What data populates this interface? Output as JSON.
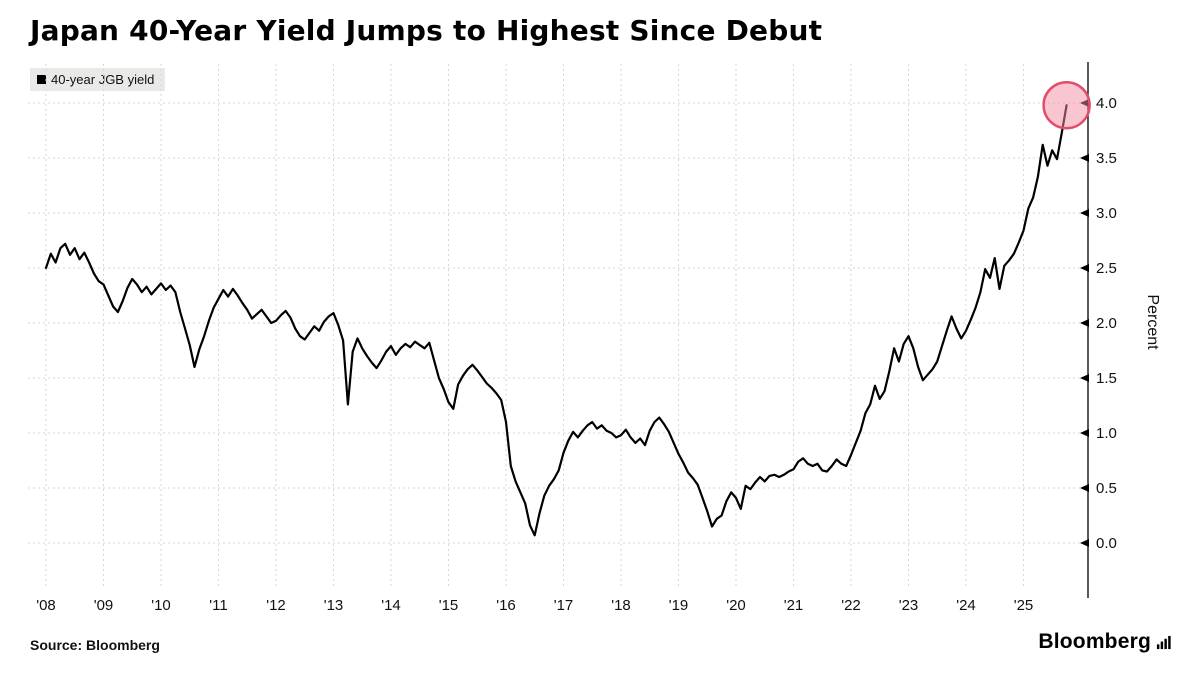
{
  "header": {
    "title": "Japan 40-Year Yield Jumps to Highest Since Debut"
  },
  "legend": {
    "label": "40-year JGB yield",
    "swatch_color": "#000000",
    "background": "#e9e9e7"
  },
  "footer": {
    "source": "Source: Bloomberg",
    "brand": "Bloomberg"
  },
  "chart_data": {
    "type": "line",
    "title": "Japan 40-Year Yield Jumps to Highest Since Debut",
    "xlabel": "",
    "ylabel": "Percent",
    "ylim": [
      0.0,
      4.0
    ],
    "grid": "dotted",
    "legend_position": "top-left",
    "yticks": [
      0,
      0.5,
      1,
      1.5,
      2,
      2.5,
      3,
      3.5,
      4
    ],
    "ytick_labels": [
      "0.0",
      "0.5",
      "1.0",
      "1.5",
      "2.0",
      "2.5",
      "3.0",
      "3.5",
      "4.0"
    ],
    "xticks": [
      2008,
      2009,
      2010,
      2011,
      2012,
      2013,
      2014,
      2015,
      2016,
      2017,
      2018,
      2019,
      2020,
      2021,
      2022,
      2023,
      2024,
      2025
    ],
    "xtick_labels": [
      "'08",
      "'09",
      "'10",
      "'11",
      "'12",
      "'13",
      "'14",
      "'15",
      "'16",
      "'17",
      "'18",
      "'19",
      "'20",
      "'21",
      "'22",
      "'23",
      "'24",
      "'25"
    ],
    "colors": {
      "line": "#000000",
      "grid": "#d6d6d6",
      "axis": "#000000",
      "tick_text": "#111111"
    },
    "highlight": {
      "x": 2025.75,
      "y": 3.98,
      "radius": 23,
      "fill": "#f48ca3",
      "stroke": "#df4f6c"
    },
    "series": [
      {
        "name": "40-year JGB yield",
        "x_start": 2008.0,
        "x_step": 0.083333,
        "values": [
          2.5,
          2.63,
          2.55,
          2.68,
          2.72,
          2.62,
          2.68,
          2.58,
          2.64,
          2.55,
          2.45,
          2.38,
          2.35,
          2.25,
          2.15,
          2.1,
          2.2,
          2.32,
          2.4,
          2.35,
          2.28,
          2.33,
          2.26,
          2.31,
          2.36,
          2.3,
          2.34,
          2.28,
          2.1,
          1.95,
          1.8,
          1.6,
          1.76,
          1.88,
          2.02,
          2.14,
          2.22,
          2.3,
          2.24,
          2.31,
          2.25,
          2.18,
          2.12,
          2.04,
          2.08,
          2.12,
          2.06,
          2.0,
          2.02,
          2.07,
          2.11,
          2.05,
          1.95,
          1.88,
          1.85,
          1.91,
          1.97,
          1.93,
          2.01,
          2.06,
          2.09,
          1.98,
          1.84,
          1.26,
          1.74,
          1.86,
          1.77,
          1.7,
          1.64,
          1.59,
          1.66,
          1.74,
          1.79,
          1.71,
          1.77,
          1.81,
          1.78,
          1.83,
          1.8,
          1.77,
          1.82,
          1.66,
          1.5,
          1.4,
          1.28,
          1.22,
          1.44,
          1.52,
          1.58,
          1.62,
          1.57,
          1.51,
          1.45,
          1.41,
          1.36,
          1.3,
          1.1,
          0.7,
          0.56,
          0.46,
          0.36,
          0.16,
          0.07,
          0.27,
          0.43,
          0.52,
          0.58,
          0.66,
          0.82,
          0.93,
          1.01,
          0.96,
          1.02,
          1.07,
          1.1,
          1.04,
          1.07,
          1.02,
          1.0,
          0.96,
          0.98,
          1.03,
          0.96,
          0.91,
          0.95,
          0.89,
          1.02,
          1.1,
          1.14,
          1.08,
          1.01,
          0.91,
          0.81,
          0.73,
          0.64,
          0.59,
          0.53,
          0.41,
          0.29,
          0.15,
          0.22,
          0.25,
          0.38,
          0.46,
          0.41,
          0.31,
          0.52,
          0.49,
          0.55,
          0.6,
          0.56,
          0.61,
          0.62,
          0.6,
          0.62,
          0.65,
          0.67,
          0.74,
          0.77,
          0.72,
          0.7,
          0.72,
          0.66,
          0.65,
          0.7,
          0.76,
          0.72,
          0.7,
          0.8,
          0.91,
          1.02,
          1.18,
          1.26,
          1.43,
          1.31,
          1.38,
          1.56,
          1.77,
          1.65,
          1.81,
          1.88,
          1.77,
          1.6,
          1.48,
          1.53,
          1.58,
          1.65,
          1.79,
          1.93,
          2.06,
          1.95,
          1.86,
          1.93,
          2.03,
          2.14,
          2.28,
          2.49,
          2.41,
          2.59,
          2.31,
          2.52,
          2.57,
          2.63,
          2.73,
          2.84,
          3.04,
          3.14,
          3.33,
          3.62,
          3.43,
          3.57,
          3.49,
          3.73,
          3.98
        ]
      }
    ]
  }
}
